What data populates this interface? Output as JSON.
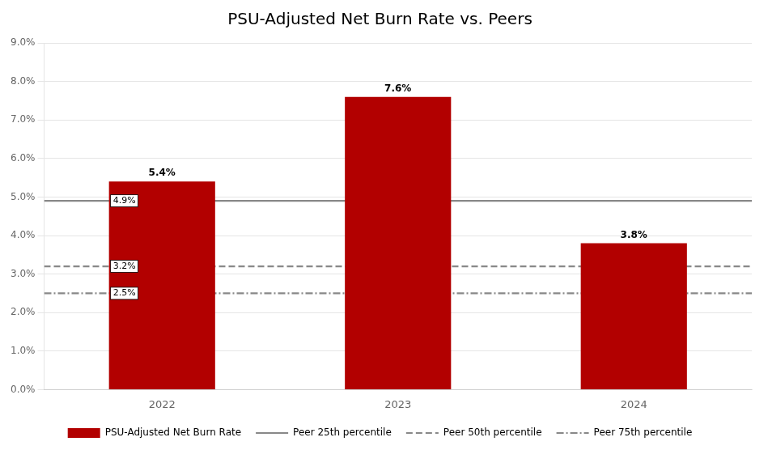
{
  "chart_data": {
    "type": "bar",
    "title": "PSU-Adjusted Net Burn Rate vs. Peers",
    "categories": [
      "2022",
      "2023",
      "2024"
    ],
    "series": [
      {
        "name": "PSU-Adjusted Net Burn Rate",
        "color": "#B20000",
        "values": [
          5.4,
          7.6,
          3.8
        ],
        "value_labels": [
          "5.4%",
          "7.6%",
          "3.8%"
        ]
      }
    ],
    "peer_lines": [
      {
        "name": "Peer 25th percentile",
        "value": 4.9,
        "annotation": "4.9%",
        "color": "#888888",
        "line_style": "solid"
      },
      {
        "name": "Peer 50th percentile",
        "value": 3.2,
        "annotation": "3.2%",
        "color": "#888888",
        "line_style": "dashed"
      },
      {
        "name": "Peer 75th percentile",
        "value": 2.5,
        "annotation": "2.5%",
        "color": "#888888",
        "line_style": "dashdot"
      }
    ],
    "ylim": [
      0,
      9.0
    ],
    "yticks": [
      {
        "value": 0.0,
        "label": "0.0%"
      },
      {
        "value": 1.0,
        "label": "1.0%"
      },
      {
        "value": 2.0,
        "label": "2.0%"
      },
      {
        "value": 3.0,
        "label": "3.0%"
      },
      {
        "value": 4.0,
        "label": "4.0%"
      },
      {
        "value": 5.0,
        "label": "5.0%"
      },
      {
        "value": 6.0,
        "label": "6.0%"
      },
      {
        "value": 7.0,
        "label": "7.0%"
      },
      {
        "value": 8.0,
        "label": "8.0%"
      },
      {
        "value": 9.0,
        "label": "9.0%"
      }
    ],
    "grid": true,
    "data_labels": true,
    "legend": "bottom"
  }
}
